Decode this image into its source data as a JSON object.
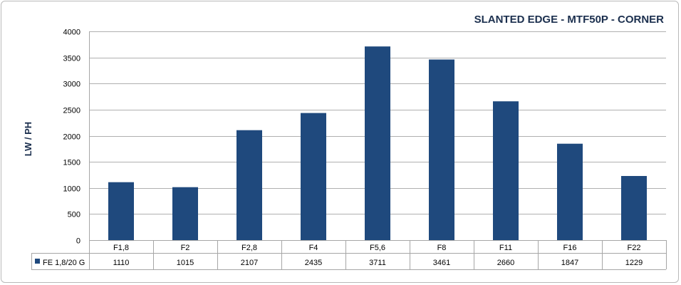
{
  "chart_data": {
    "type": "bar",
    "title": "SLANTED EDGE - MTF50P - CORNER",
    "xlabel": "",
    "ylabel": "LW / PH",
    "ylim": [
      0,
      4000
    ],
    "yticks": [
      0,
      500,
      1000,
      1500,
      2000,
      2500,
      3000,
      3500,
      4000
    ],
    "grid": true,
    "legend_position": "data-table",
    "categories": [
      "F1,8",
      "F2",
      "F2,8",
      "F4",
      "F5,6",
      "F8",
      "F11",
      "F16",
      "F22"
    ],
    "series": [
      {
        "name": "FE 1,8/20 G",
        "color": "#1f497d",
        "values": [
          1110,
          1015,
          2107,
          2435,
          3711,
          3461,
          2660,
          1847,
          1229
        ]
      }
    ]
  }
}
